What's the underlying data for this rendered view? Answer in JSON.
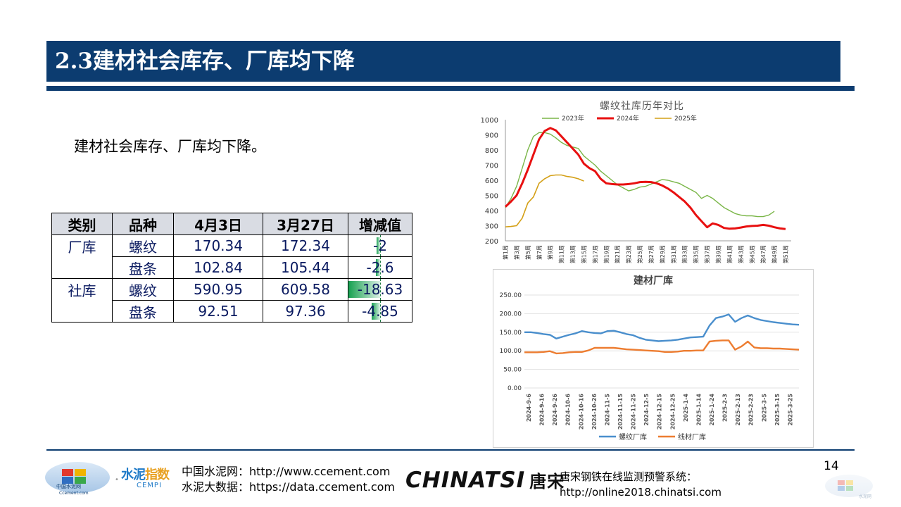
{
  "slide": {
    "title": "2.3建材社会库存、厂库均下降",
    "body_text": "建材社会库存、厂库均下降。",
    "page_number": "14"
  },
  "table": {
    "headers": [
      "类别",
      "品种",
      "4月3日",
      "3月27日",
      "增减值"
    ],
    "rows": [
      {
        "category": "厂库",
        "variety": "螺纹",
        "apr3": "170.34",
        "mar27": "172.34",
        "delta": "-2",
        "delta_value": -2
      },
      {
        "category": "",
        "variety": "盘条",
        "apr3": "102.84",
        "mar27": "105.44",
        "delta": "-2.6",
        "delta_value": -2.6
      },
      {
        "category": "社库",
        "variety": "螺纹",
        "apr3": "590.95",
        "mar27": "609.58",
        "delta": "-18.63",
        "delta_value": -18.63
      },
      {
        "category": "",
        "variety": "盘条",
        "apr3": "92.51",
        "mar27": "97.36",
        "delta": "-4.85",
        "delta_value": -4.85
      }
    ],
    "bar_color": "#16a050"
  },
  "chart_data": [
    {
      "type": "line",
      "title": "螺纹社库历年对比",
      "ylim": [
        200,
        1000
      ],
      "yticks": [
        "1000",
        "900",
        "800",
        "700",
        "600",
        "500",
        "400",
        "300",
        "200"
      ],
      "x_labels": [
        "第1周",
        "第3周",
        "第5周",
        "第7周",
        "第9周",
        "第11周",
        "第13周",
        "第15周",
        "第17周",
        "第19周",
        "第21周",
        "第23周",
        "第25周",
        "第27周",
        "第29周",
        "第31周",
        "第33周",
        "第35周",
        "第37周",
        "第39周",
        "第41周",
        "第43周",
        "第45周",
        "第47周",
        "第49周",
        "第51周"
      ],
      "series": [
        {
          "name": "2023年",
          "color": "#7ab648",
          "width": 1.4,
          "values": [
            420,
            480,
            560,
            680,
            800,
            890,
            915,
            915,
            905,
            880,
            850,
            830,
            820,
            810,
            760,
            730,
            700,
            660,
            630,
            600,
            570,
            550,
            530,
            540,
            555,
            560,
            575,
            590,
            605,
            600,
            590,
            580,
            560,
            540,
            520,
            480,
            500,
            480,
            450,
            420,
            400,
            380,
            370,
            365,
            365,
            360,
            360,
            370,
            395
          ]
        },
        {
          "name": "2024年",
          "color": "#e81010",
          "width": 3,
          "values": [
            425,
            460,
            500,
            580,
            670,
            770,
            870,
            925,
            945,
            930,
            890,
            850,
            810,
            770,
            710,
            680,
            660,
            610,
            580,
            575,
            572,
            572,
            575,
            580,
            588,
            590,
            588,
            580,
            565,
            545,
            520,
            490,
            460,
            420,
            370,
            330,
            290,
            315,
            305,
            285,
            280,
            282,
            288,
            295,
            298,
            300,
            305,
            300,
            290,
            282,
            278
          ]
        },
        {
          "name": "2025年",
          "color": "#d4a017",
          "width": 1.6,
          "values": [
            292,
            295,
            300,
            350,
            450,
            490,
            580,
            610,
            630,
            635,
            635,
            625,
            620,
            610,
            595
          ]
        }
      ]
    },
    {
      "type": "line",
      "title": "建材厂库",
      "ylim": [
        0,
        250
      ],
      "yticks": [
        "250.00",
        "200.00",
        "150.00",
        "100.00",
        "50.00",
        "0.00"
      ],
      "x_labels": [
        "2024-9-6",
        "2024-9-16",
        "2024-9-26",
        "2024-10-6",
        "2024-10-16",
        "2024-10-26",
        "2024-11-5",
        "2024-11-15",
        "2024-11-25",
        "2024-12-5",
        "2024-12-15",
        "2024-12-25",
        "2025-1-4",
        "2025-1-14",
        "2025-1-24",
        "2025-2-3",
        "2025-2-13",
        "2025-2-23",
        "2025-3-5",
        "2025-3-15",
        "2025-3-25"
      ],
      "series": [
        {
          "name": "螺纹厂库",
          "color": "#4a8fcd",
          "values": [
            150,
            150,
            148,
            145,
            143,
            133,
            138,
            143,
            147,
            153,
            150,
            148,
            147,
            153,
            154,
            150,
            145,
            142,
            135,
            130,
            128,
            126,
            127,
            128,
            130,
            133,
            136,
            137,
            138,
            168,
            188,
            192,
            198,
            178,
            188,
            195,
            188,
            183,
            180,
            177,
            175,
            173,
            171,
            170
          ]
        },
        {
          "name": "线材厂库",
          "color": "#ed7d31",
          "values": [
            96,
            96,
            96,
            97,
            99,
            93,
            94,
            96,
            97,
            97,
            101,
            108,
            108,
            108,
            108,
            106,
            104,
            103,
            102,
            101,
            100,
            99,
            97,
            97,
            98,
            100,
            100,
            101,
            101,
            125,
            127,
            128,
            128,
            103,
            112,
            125,
            109,
            107,
            107,
            106,
            106,
            105,
            104,
            103
          ]
        }
      ]
    }
  ],
  "footer": {
    "logo1_text": "中国水泥网",
    "logo1_sub": "Ccement.com",
    "logo2_a": "水泥",
    "logo2_b": "指数",
    "logo2_sub": "CEMPI",
    "line1": "中国水泥网：http://www.ccement.com",
    "line2": "水泥大数据：https://data.ccement.com",
    "brand_a": "CHINATSI",
    "brand_b": "唐宋",
    "monitor_line1": "唐宋钢铁在线监测预警系统：",
    "monitor_line2": "http://online2018.chinatsi.com",
    "logo3_text": "水泥网"
  }
}
